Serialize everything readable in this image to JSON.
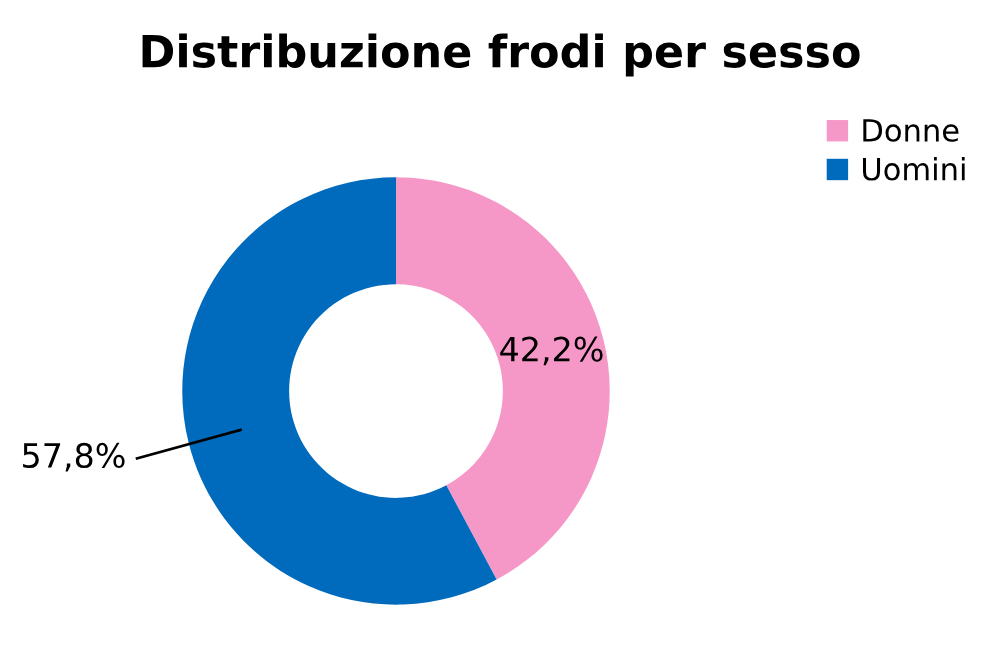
{
  "chart_data": {
    "type": "donut",
    "title": "Distribuzione frodi per sesso",
    "categories": [
      "Donne",
      "Uomini"
    ],
    "values": [
      42.2,
      57.8
    ],
    "colors": [
      "#f598c8",
      "#006bbd"
    ],
    "value_labels": [
      "42,2%",
      "57,8%"
    ],
    "legend": "top right"
  }
}
